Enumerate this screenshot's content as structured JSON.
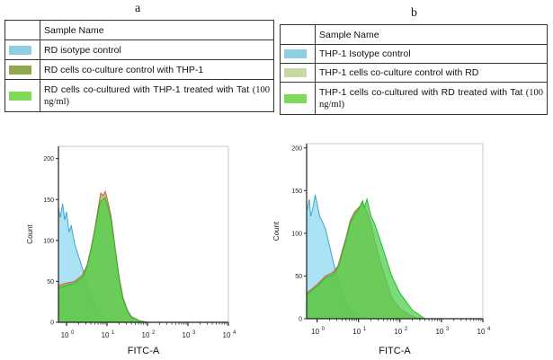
{
  "panels": [
    {
      "label": "a",
      "legend": {
        "header": "Sample Name",
        "rows": [
          {
            "text": "RD isotype control",
            "suffix": "",
            "color": "#8ecfe0"
          },
          {
            "text": "RD cells co-culture control with THP-1",
            "suffix": "",
            "color": "#8faa4e"
          },
          {
            "text": "RD cells co-cultured with THP-1 treated with Tat",
            "suffix": "(100 ng/ml)",
            "color": "#7ed957"
          }
        ]
      }
    },
    {
      "label": "b",
      "legend": {
        "header": "Sample Name",
        "rows": [
          {
            "text": "THP-1 Isotype control",
            "suffix": "",
            "color": "#8ecfe0"
          },
          {
            "text": "THP-1 cells co-culture control with RD",
            "suffix": "",
            "color": "#c5d9a0"
          },
          {
            "text": "THP-1 cells co-cultured with RD treated with Tat",
            "suffix": "(100 ng/ml)",
            "color": "#7ed957"
          }
        ]
      }
    }
  ],
  "chart_data": [
    {
      "type": "area",
      "panel": "a",
      "xlabel": "FITC-A",
      "ylabel": "Count",
      "xscale": "log",
      "xlim": [
        0.63,
        10000
      ],
      "ylim": [
        0,
        215
      ],
      "xticks": [
        "10^0",
        "10^1",
        "10^2",
        "10^3",
        "10^4"
      ],
      "yticks": [
        0,
        50,
        100,
        150,
        200
      ],
      "grid": false,
      "series": [
        {
          "fill": "#8fd9f2",
          "stroke": "#3aa6cc",
          "x": [
            0.63,
            0.7,
            0.8,
            0.9,
            1.0,
            1.15,
            1.3,
            1.6,
            2,
            2.5,
            3.2,
            4,
            5,
            6.3,
            8,
            10,
            16,
            25,
            10000
          ],
          "y": [
            140,
            128,
            145,
            125,
            135,
            110,
            118,
            95,
            80,
            65,
            45,
            32,
            20,
            12,
            6,
            3,
            1,
            0,
            0
          ]
        },
        {
          "fill": "#a8a84a",
          "stroke": "#d85a5a",
          "x": [
            0.63,
            1,
            1.6,
            2.5,
            3.2,
            4,
            5,
            6.3,
            7,
            8,
            9,
            10,
            12.6,
            16,
            20,
            25,
            32,
            40,
            63,
            100,
            10000
          ],
          "y": [
            45,
            48,
            50,
            58,
            70,
            90,
            115,
            145,
            158,
            155,
            160,
            152,
            130,
            90,
            55,
            30,
            15,
            7,
            2,
            0,
            0
          ]
        },
        {
          "fill": "#4fd04f",
          "stroke": "#22c022",
          "x": [
            0.63,
            1,
            1.6,
            2.5,
            3.2,
            4,
            5,
            6.3,
            7,
            8,
            9,
            10,
            12.6,
            16,
            20,
            25,
            32,
            40,
            63,
            100,
            10000
          ],
          "y": [
            42,
            45,
            48,
            55,
            68,
            88,
            112,
            140,
            148,
            150,
            152,
            145,
            125,
            88,
            52,
            28,
            14,
            6,
            2,
            0,
            0
          ]
        }
      ]
    },
    {
      "type": "area",
      "panel": "b",
      "xlabel": "FITC-A",
      "ylabel": "Count",
      "xscale": "log",
      "xlim": [
        0.56,
        10000
      ],
      "ylim": [
        0,
        205
      ],
      "xticks": [
        "10^0",
        "10^1",
        "10^2",
        "10^3",
        "10^4"
      ],
      "yticks": [
        0,
        50,
        100,
        150,
        200
      ],
      "grid": false,
      "series": [
        {
          "fill": "#8fd9f2",
          "stroke": "#3aa6cc",
          "x": [
            0.56,
            0.65,
            0.7,
            0.8,
            0.9,
            1,
            1.15,
            1.3,
            1.6,
            2,
            2.5,
            3.2,
            4,
            5,
            6.3,
            10,
            20,
            10000
          ],
          "y": [
            125,
            140,
            120,
            130,
            145,
            135,
            120,
            115,
            105,
            85,
            65,
            45,
            30,
            18,
            10,
            3,
            0,
            0
          ]
        },
        {
          "fill": "#a8a84a",
          "stroke": "#d85a5a",
          "x": [
            0.56,
            1,
            1.6,
            2.5,
            3.2,
            5,
            6.3,
            8,
            10,
            12.6,
            16,
            20,
            25,
            32,
            50,
            63,
            100,
            160,
            250,
            400,
            10000
          ],
          "y": [
            30,
            40,
            50,
            55,
            62,
            95,
            115,
            125,
            130,
            135,
            125,
            110,
            90,
            70,
            40,
            25,
            12,
            5,
            1,
            0,
            0
          ]
        },
        {
          "fill": "#4fd04f",
          "stroke": "#22c022",
          "x": [
            0.56,
            1,
            1.6,
            2.5,
            3.2,
            5,
            6.3,
            8,
            10,
            12.6,
            14,
            16,
            20,
            25,
            40,
            63,
            100,
            200,
            400,
            10000
          ],
          "y": [
            28,
            38,
            48,
            52,
            60,
            92,
            112,
            122,
            128,
            138,
            130,
            140,
            120,
            110,
            80,
            50,
            30,
            10,
            0,
            0
          ]
        }
      ]
    }
  ]
}
